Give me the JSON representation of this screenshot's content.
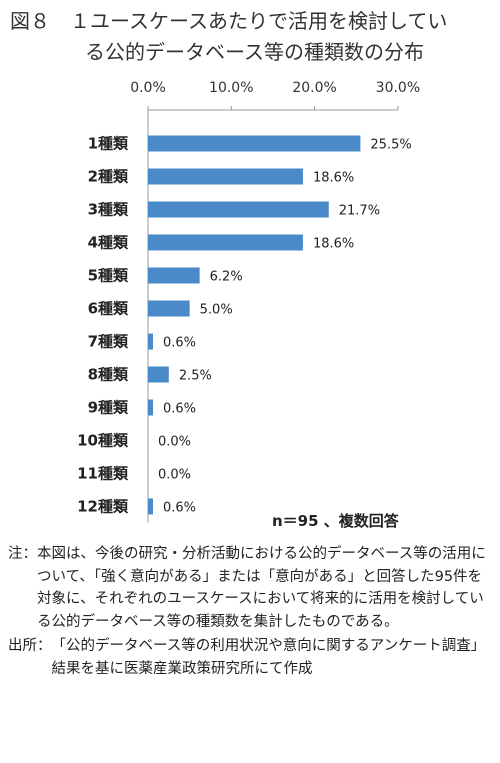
{
  "title": {
    "label": "図８",
    "line1": "１ユースケースあたりで活用を検討してい",
    "line2": "る公的データベース等の種類数の分布"
  },
  "chart_data": {
    "type": "bar",
    "orientation": "horizontal",
    "categories": [
      "1種類",
      "2種類",
      "3種類",
      "4種類",
      "5種類",
      "6種類",
      "7種類",
      "8種類",
      "9種類",
      "10種類",
      "11種類",
      "12種類"
    ],
    "values": [
      25.5,
      18.6,
      21.7,
      18.6,
      6.2,
      5.0,
      0.6,
      2.5,
      0.6,
      0.0,
      0.0,
      0.6
    ],
    "value_labels": [
      "25.5%",
      "18.6%",
      "21.7%",
      "18.6%",
      "6.2%",
      "5.0%",
      "0.6%",
      "2.5%",
      "0.6%",
      "0.0%",
      "0.0%",
      "0.6%"
    ],
    "xlim": [
      0,
      30
    ],
    "xticks": [
      0,
      10,
      20,
      30
    ],
    "xtick_labels": [
      "0.0%",
      "10.0%",
      "20.0%",
      "30.0%"
    ],
    "axis_position": "top",
    "grid": false,
    "bar_color": "#4a8ac8",
    "annotation": "n＝95 、複数回答"
  },
  "notes": {
    "note_label": "注：",
    "note_text": "本図は、今後の研究・分析活動における公的データベース等の活用について、「強く意向がある」または「意向がある」と回答した95件を対象に、それぞれのユースケースにおいて将来的に活用を検討している公的データベース等の種類数を集計したものである。",
    "source_label": "出所：",
    "source_text": "「公的データベース等の利用状況や意向に関するアンケート調査」結果を基に医薬産業政策研究所にて作成"
  }
}
